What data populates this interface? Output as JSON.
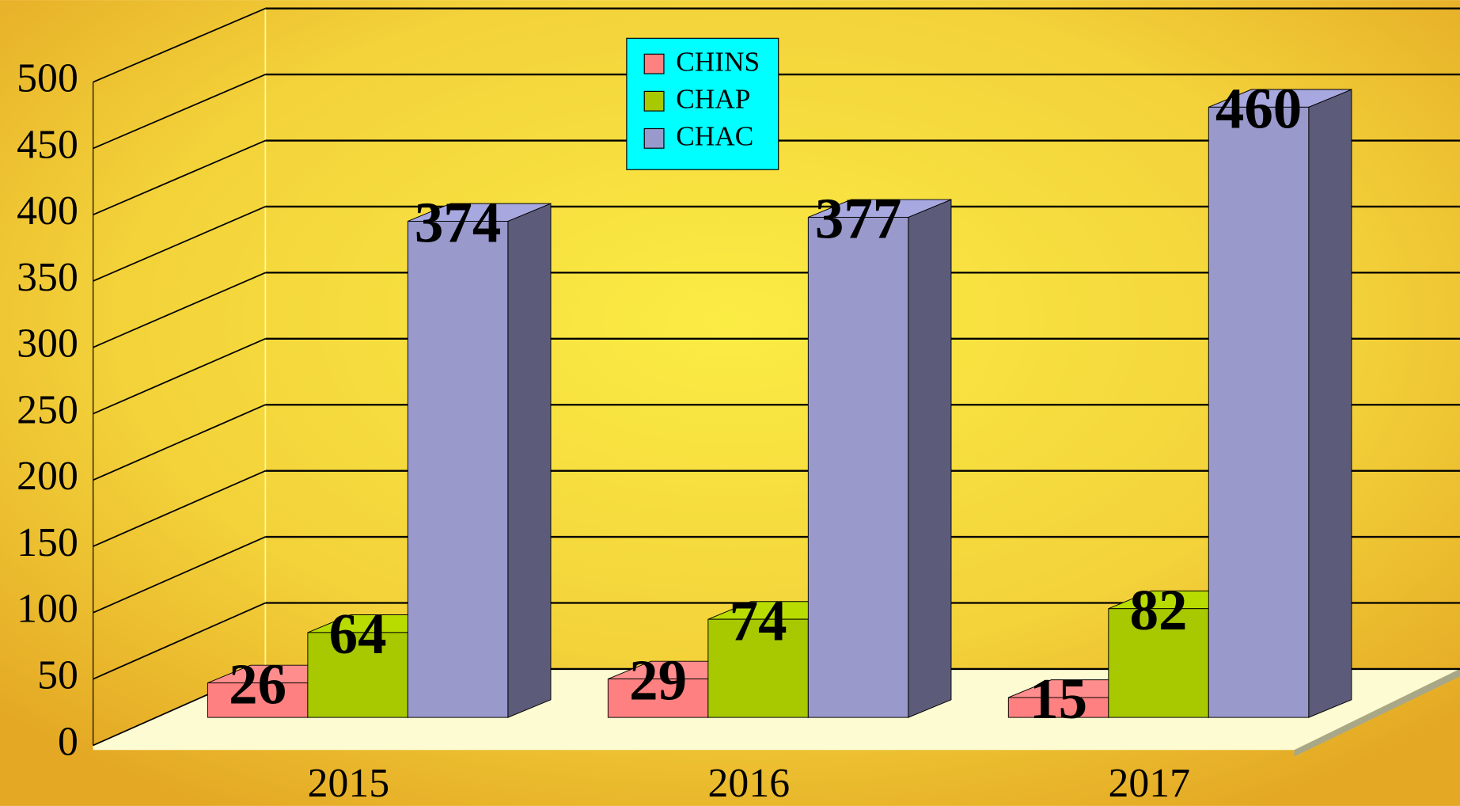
{
  "chart_data": {
    "type": "bar3d",
    "categories": [
      "2015",
      "2016",
      "2017"
    ],
    "series": [
      {
        "name": "CHINS",
        "color": "#ff8080",
        "values": [
          26,
          29,
          15
        ]
      },
      {
        "name": "CHAP",
        "color": "#a8c800",
        "values": [
          64,
          74,
          82
        ]
      },
      {
        "name": "CHAC",
        "color": "#9999cc",
        "values": [
          374,
          377,
          460
        ]
      }
    ],
    "ylim": [
      0,
      500
    ],
    "yticks": [
      0,
      50,
      100,
      150,
      200,
      250,
      300,
      350,
      400,
      450,
      500
    ],
    "grid": true,
    "legend": "top"
  }
}
